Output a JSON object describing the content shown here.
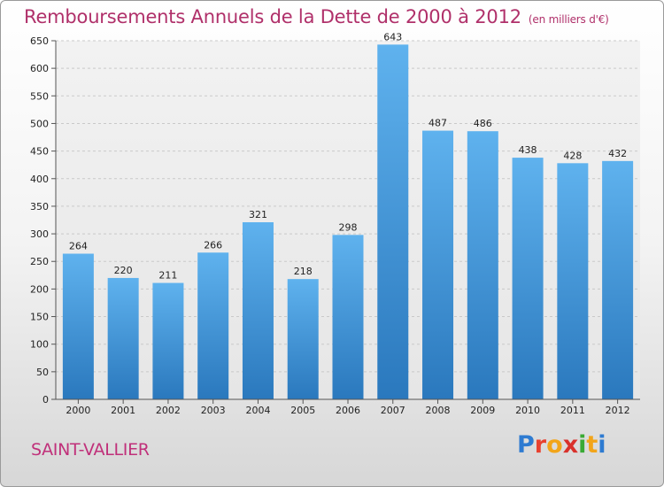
{
  "header": {
    "title": "Remboursements Annuels de la Dette de 2000 à 2012",
    "subtitle": "(en milliers d'€)"
  },
  "footer": {
    "city": "SAINT-VALLIER",
    "logo_text": "Proxiti",
    "logo_letters": [
      {
        "char": "P",
        "color": "#2e7bd1"
      },
      {
        "char": "r",
        "color": "#e8412f"
      },
      {
        "char": "o",
        "color": "#f2a51a"
      },
      {
        "char": "x",
        "color": "#d9312b"
      },
      {
        "char": "i",
        "color": "#3aaa35"
      },
      {
        "char": "t",
        "color": "#f2a51a"
      },
      {
        "char": "i",
        "color": "#2e7bd1"
      }
    ]
  },
  "chart_data": {
    "type": "bar",
    "title": "Remboursements Annuels de la Dette de 2000 à 2012",
    "subtitle": "(en milliers d'€)",
    "xlabel": "",
    "ylabel": "",
    "categories": [
      "2000",
      "2001",
      "2002",
      "2003",
      "2004",
      "2005",
      "2006",
      "2007",
      "2008",
      "2009",
      "2010",
      "2011",
      "2012"
    ],
    "values": [
      264,
      220,
      211,
      266,
      321,
      218,
      298,
      643,
      487,
      486,
      438,
      428,
      432
    ],
    "ylim": [
      0,
      650
    ],
    "yticks": [
      0,
      50,
      100,
      150,
      200,
      250,
      300,
      350,
      400,
      450,
      500,
      550,
      600,
      650
    ],
    "grid": true,
    "bar_color": "#4a9fe0"
  }
}
